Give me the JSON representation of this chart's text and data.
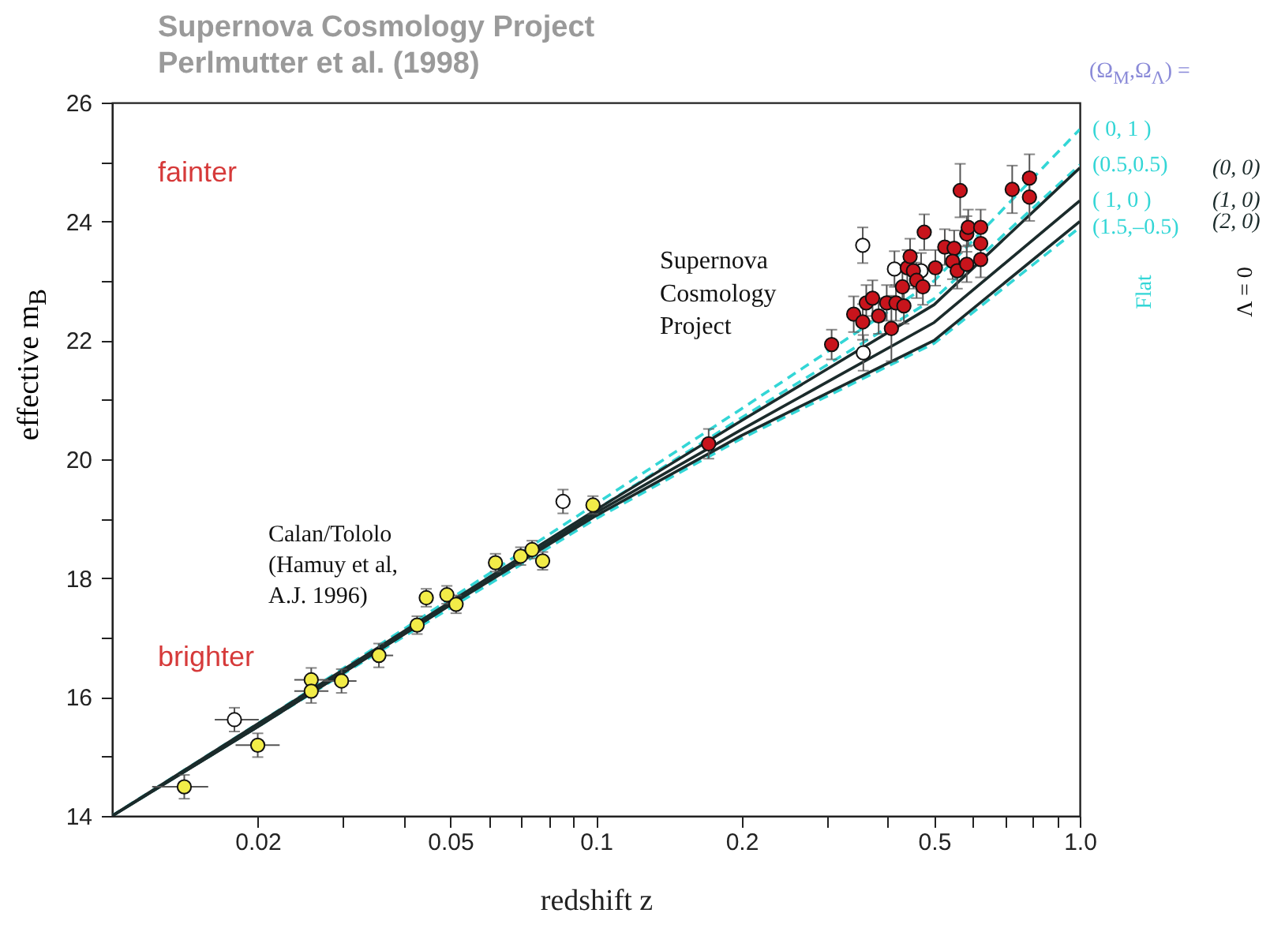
{
  "chart_data": {
    "type": "scatter",
    "title": "Supernova Cosmology Project",
    "subtitle": "Perlmutter et al. (1998)",
    "xlabel": "redshift  z",
    "ylabel": "effective m$_{B}$",
    "legend_title": "(Ω$_{M}$,Ω$_{Λ}$) =",
    "log": "x",
    "xlim": [
      0.01,
      1.0
    ],
    "ylim": [
      14,
      26
    ],
    "xticks": [
      0.02,
      {
        "value": 0.03,
        "label": null
      },
      {
        "value": 0.04,
        "label": null
      },
      0.05,
      {
        "value": 0.06,
        "label": null
      },
      {
        "value": 0.07,
        "label": null
      },
      {
        "value": 0.08,
        "label": null
      },
      {
        "value": 0.09,
        "label": null
      },
      0.1,
      0.2,
      {
        "value": 0.3,
        "label": null
      },
      {
        "value": 0.4,
        "label": null
      },
      0.5,
      {
        "value": 0.6,
        "label": null
      },
      {
        "value": 0.7,
        "label": null
      },
      {
        "value": 0.8,
        "label": null
      },
      {
        "value": 0.9,
        "label": null
      },
      {
        "value": 1.0,
        "label": "1.0"
      }
    ],
    "yticks": [
      14,
      {
        "value": 15,
        "label": null
      },
      16,
      {
        "value": 17,
        "label": null
      },
      18,
      {
        "value": 19,
        "label": null
      },
      20,
      {
        "value": 21,
        "label": null
      },
      22,
      {
        "value": 23,
        "label": null
      },
      24,
      {
        "value": 25,
        "label": null
      },
      26
    ],
    "annotations": [
      "fainter",
      "brighter",
      "Calan/Tololo\n(Hamuy et al,\nA.J. 1996)",
      "Supernova\nCosmology\nProject",
      "Flat",
      "Λ = 0",
      {
        "text": "( 1,   0 )",
        "x": 1.0,
        "y": 24.35
      }
    ],
    "series": [
      {
        "type": "line",
        "name": "( 0,  1 )",
        "color": "#33d6d6",
        "line_style": "dashed",
        "x": [
          0.01,
          0.02,
          0.05,
          0.1,
          0.2,
          0.5,
          1.0
        ],
        "values": [
          14.0,
          15.55,
          17.65,
          19.25,
          20.85,
          23.0,
          25.55
        ]
      },
      {
        "type": "line",
        "name": "(0.5,0.5)",
        "color": "#33d6d6",
        "line_style": "dashed",
        "x": [
          0.01,
          0.02,
          0.05,
          0.1,
          0.2,
          0.5,
          1.0
        ],
        "values": [
          14.0,
          15.55,
          17.6,
          19.15,
          20.7,
          22.7,
          24.95
        ]
      },
      {
        "type": "line",
        "name": "(1.5,–0.5)",
        "color": "#33d6d6",
        "line_style": "dashed",
        "x": [
          0.01,
          0.02,
          0.05,
          0.1,
          0.2,
          0.5,
          1.0
        ],
        "values": [
          14.0,
          15.5,
          17.5,
          19.0,
          20.35,
          21.95,
          23.9
        ]
      },
      {
        "type": "line",
        "name": "(0, 0)",
        "color": "#1b2b2b",
        "line_style": "solid",
        "x": [
          0.01,
          0.02,
          0.05,
          0.1,
          0.2,
          0.5,
          1.0
        ],
        "values": [
          14.0,
          15.55,
          17.6,
          19.15,
          20.65,
          22.6,
          24.9
        ]
      },
      {
        "type": "line",
        "name": "(1, 0)",
        "color": "#1b2b2b",
        "line_style": "solid",
        "x": [
          0.01,
          0.02,
          0.05,
          0.1,
          0.2,
          0.5,
          1.0
        ],
        "values": [
          14.0,
          15.5,
          17.55,
          19.1,
          20.5,
          22.3,
          24.35
        ]
      },
      {
        "type": "line",
        "name": "(2, 0)",
        "color": "#1b2b2b",
        "line_style": "solid",
        "x": [
          0.01,
          0.02,
          0.05,
          0.1,
          0.2,
          0.5,
          1.0
        ],
        "values": [
          14.0,
          15.5,
          17.55,
          19.05,
          20.4,
          22.0,
          24.0
        ]
      },
      {
        "color": "#ffffff",
        "marker": "circle",
        "x": [
          0.0179,
          0.0855,
          0.356,
          0.357,
          0.414,
          0.47
        ],
        "values": [
          15.62,
          19.29,
          23.6,
          21.79,
          23.2,
          23.17
        ],
        "errors": [
          0.2,
          0.2,
          0.3,
          0.3,
          0.3,
          0.3
        ],
        "xerrors": [
          [
            0.0163,
            0.0201
          ],
          null,
          null,
          null,
          null,
          null
        ]
      },
      {
        "color": "#f2ec48",
        "marker": "circle",
        "x": [
          0.0141,
          0.02,
          0.0258,
          0.0258,
          0.0298,
          0.0356,
          0.0427,
          0.0446,
          0.0492,
          0.0514,
          0.062,
          0.0699,
          0.0738,
          0.0776,
          0.0986
        ],
        "values": [
          14.49,
          15.19,
          16.29,
          16.1,
          16.27,
          16.7,
          17.21,
          17.67,
          17.72,
          17.56,
          18.26,
          18.37,
          18.48,
          18.29,
          19.23
        ],
        "errors": [
          0.2,
          0.2,
          0.2,
          0.2,
          0.2,
          0.2,
          0.15,
          0.15,
          0.15,
          0.15,
          0.15,
          0.15,
          0.15,
          0.15,
          0.15
        ],
        "xerrors": [
          [
            0.0121,
            0.0158
          ],
          [
            0.018,
            0.0222
          ],
          [
            0.0238,
            0.028
          ],
          [
            0.0238,
            0.028
          ],
          [
            0.0273,
            0.032
          ],
          [
            0.0346,
            0.0381
          ],
          null,
          null,
          null,
          null,
          null,
          null,
          null,
          null,
          null
        ]
      },
      {
        "color": "#c8141c",
        "marker": "circle",
        "x": [
          0.171,
          0.307,
          0.341,
          0.356,
          0.362,
          0.373,
          0.384,
          0.399,
          0.408,
          0.417,
          0.433,
          0.43,
          0.44,
          0.446,
          0.453,
          0.46,
          0.474,
          0.477,
          0.503,
          0.526,
          0.55,
          0.546,
          0.558,
          0.566,
          0.584,
          0.584,
          0.588,
          0.624,
          0.624,
          0.624,
          0.725,
          0.787,
          0.787
        ],
        "values": [
          20.26,
          21.93,
          22.44,
          22.31,
          22.63,
          22.71,
          22.41,
          22.63,
          22.2,
          22.63,
          22.58,
          22.9,
          23.22,
          23.41,
          23.17,
          23.01,
          22.9,
          23.82,
          23.22,
          23.57,
          23.55,
          23.33,
          23.17,
          24.52,
          23.79,
          23.28,
          23.9,
          23.9,
          23.63,
          23.36,
          24.54,
          24.73,
          24.41
        ],
        "errors": [
          0.25,
          0.25,
          0.3,
          0.3,
          0.3,
          0.3,
          0.3,
          0.3,
          0.55,
          0.3,
          0.3,
          0.3,
          0.3,
          0.3,
          0.3,
          0.3,
          0.3,
          0.3,
          0.3,
          0.3,
          0.3,
          0.3,
          0.3,
          0.45,
          0.3,
          0.3,
          0.3,
          0.3,
          null,
          0.3,
          0.4,
          0.4,
          0.4
        ]
      }
    ]
  }
}
